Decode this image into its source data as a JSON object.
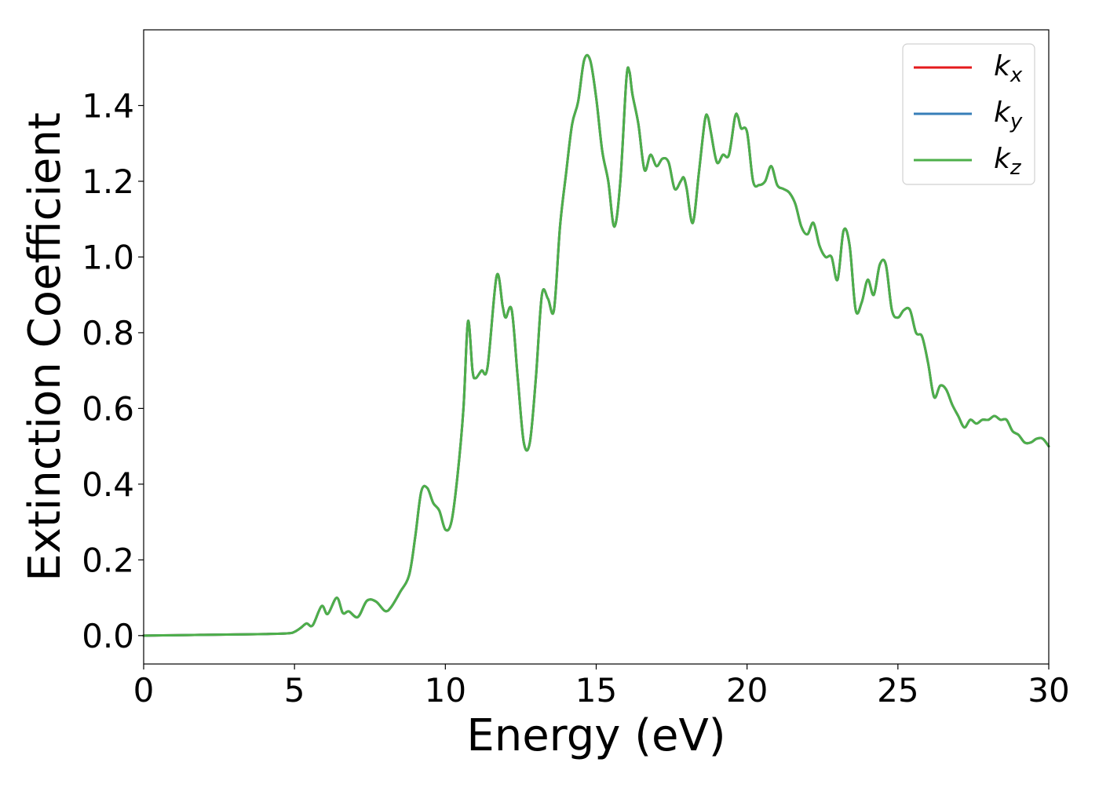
{
  "chart_data": {
    "type": "line",
    "xlabel": "Energy (eV)",
    "ylabel": "Extinction Coefficient",
    "xlim": [
      0,
      30
    ],
    "ylim": [
      -0.075,
      1.6
    ],
    "xticks": [
      0,
      5,
      10,
      15,
      20,
      25,
      30
    ],
    "xtick_labels": [
      "0",
      "5",
      "10",
      "15",
      "20",
      "25",
      "30"
    ],
    "yticks": [
      0.0,
      0.2,
      0.4,
      0.6,
      0.8,
      1.0,
      1.2,
      1.4
    ],
    "ytick_labels": [
      "0.0",
      "0.2",
      "0.4",
      "0.6",
      "0.8",
      "1.0",
      "1.2",
      "1.4"
    ],
    "grid": false,
    "legend_position": "top-right",
    "legend": [
      {
        "base": "k",
        "sub": "x",
        "color": "#e41a1c"
      },
      {
        "base": "k",
        "sub": "y",
        "color": "#377eb8"
      },
      {
        "base": "k",
        "sub": "z",
        "color": "#4daf4a"
      }
    ],
    "x": [
      0,
      1,
      2,
      3,
      4,
      4.8,
      5.0,
      5.2,
      5.4,
      5.6,
      5.9,
      6.1,
      6.4,
      6.6,
      6.8,
      7.1,
      7.4,
      7.7,
      8.0,
      8.2,
      8.5,
      8.8,
      9.0,
      9.2,
      9.4,
      9.6,
      9.8,
      10.0,
      10.2,
      10.4,
      10.6,
      10.75,
      10.9,
      11.0,
      11.2,
      11.4,
      11.7,
      11.9,
      12.0,
      12.2,
      12.4,
      12.6,
      12.8,
      13.0,
      13.2,
      13.4,
      13.6,
      13.8,
      14.0,
      14.2,
      14.4,
      14.6,
      14.8,
      15.0,
      15.2,
      15.4,
      15.6,
      15.8,
      16.0,
      16.1,
      16.2,
      16.4,
      16.6,
      16.8,
      17.0,
      17.2,
      17.4,
      17.6,
      17.8,
      17.9,
      18.0,
      18.2,
      18.4,
      18.6,
      18.7,
      18.8,
      19.0,
      19.2,
      19.4,
      19.6,
      19.7,
      19.8,
      20.0,
      20.2,
      20.4,
      20.6,
      20.8,
      21.0,
      21.2,
      21.4,
      21.6,
      21.8,
      22.0,
      22.2,
      22.4,
      22.6,
      22.8,
      23.0,
      23.2,
      23.4,
      23.6,
      23.8,
      24.0,
      24.2,
      24.4,
      24.6,
      24.8,
      25.0,
      25.2,
      25.4,
      25.6,
      25.8,
      26.0,
      26.2,
      26.4,
      26.6,
      26.8,
      27.0,
      27.2,
      27.4,
      27.6,
      27.8,
      28.0,
      28.2,
      28.4,
      28.6,
      28.8,
      29.0,
      29.2,
      29.4,
      29.6,
      29.8,
      30.0
    ],
    "series": [
      {
        "name": "k_x",
        "color": "#e41a1c",
        "y": [
          0.0,
          0.001,
          0.002,
          0.003,
          0.004,
          0.006,
          0.01,
          0.02,
          0.032,
          0.027,
          0.078,
          0.057,
          0.1,
          0.06,
          0.064,
          0.049,
          0.092,
          0.09,
          0.065,
          0.075,
          0.115,
          0.16,
          0.26,
          0.38,
          0.39,
          0.35,
          0.33,
          0.28,
          0.3,
          0.42,
          0.6,
          0.83,
          0.7,
          0.68,
          0.7,
          0.71,
          0.95,
          0.87,
          0.84,
          0.86,
          0.68,
          0.51,
          0.51,
          0.68,
          0.9,
          0.89,
          0.86,
          1.08,
          1.22,
          1.35,
          1.41,
          1.52,
          1.52,
          1.42,
          1.28,
          1.2,
          1.08,
          1.2,
          1.47,
          1.49,
          1.43,
          1.35,
          1.23,
          1.27,
          1.24,
          1.26,
          1.25,
          1.18,
          1.2,
          1.21,
          1.18,
          1.09,
          1.22,
          1.36,
          1.37,
          1.33,
          1.25,
          1.27,
          1.27,
          1.37,
          1.37,
          1.34,
          1.33,
          1.2,
          1.19,
          1.2,
          1.24,
          1.19,
          1.18,
          1.17,
          1.14,
          1.08,
          1.06,
          1.09,
          1.03,
          1.0,
          1.0,
          0.94,
          1.07,
          1.03,
          0.86,
          0.88,
          0.94,
          0.9,
          0.98,
          0.98,
          0.86,
          0.84,
          0.86,
          0.86,
          0.8,
          0.79,
          0.72,
          0.63,
          0.66,
          0.65,
          0.61,
          0.58,
          0.55,
          0.57,
          0.56,
          0.57,
          0.57,
          0.58,
          0.57,
          0.57,
          0.54,
          0.53,
          0.51,
          0.51,
          0.52,
          0.52,
          0.5
        ]
      },
      {
        "name": "k_y",
        "color": "#377eb8",
        "y": [
          0.0,
          0.001,
          0.002,
          0.003,
          0.004,
          0.006,
          0.01,
          0.02,
          0.032,
          0.027,
          0.078,
          0.057,
          0.1,
          0.06,
          0.064,
          0.049,
          0.092,
          0.09,
          0.065,
          0.075,
          0.115,
          0.16,
          0.26,
          0.38,
          0.39,
          0.35,
          0.33,
          0.28,
          0.3,
          0.42,
          0.6,
          0.83,
          0.7,
          0.68,
          0.7,
          0.71,
          0.95,
          0.87,
          0.84,
          0.86,
          0.68,
          0.51,
          0.51,
          0.68,
          0.9,
          0.89,
          0.86,
          1.08,
          1.22,
          1.35,
          1.41,
          1.52,
          1.52,
          1.42,
          1.28,
          1.2,
          1.08,
          1.2,
          1.47,
          1.49,
          1.43,
          1.35,
          1.23,
          1.27,
          1.24,
          1.26,
          1.25,
          1.18,
          1.2,
          1.21,
          1.18,
          1.09,
          1.22,
          1.36,
          1.37,
          1.33,
          1.25,
          1.27,
          1.27,
          1.37,
          1.37,
          1.34,
          1.33,
          1.2,
          1.19,
          1.2,
          1.24,
          1.19,
          1.18,
          1.17,
          1.14,
          1.08,
          1.06,
          1.09,
          1.03,
          1.0,
          1.0,
          0.94,
          1.07,
          1.03,
          0.86,
          0.88,
          0.94,
          0.9,
          0.98,
          0.98,
          0.86,
          0.84,
          0.86,
          0.86,
          0.8,
          0.79,
          0.72,
          0.63,
          0.66,
          0.65,
          0.61,
          0.58,
          0.55,
          0.57,
          0.56,
          0.57,
          0.57,
          0.58,
          0.57,
          0.57,
          0.54,
          0.53,
          0.51,
          0.51,
          0.52,
          0.52,
          0.5
        ]
      },
      {
        "name": "k_z",
        "color": "#4daf4a",
        "y": [
          0.0,
          0.001,
          0.002,
          0.003,
          0.004,
          0.006,
          0.01,
          0.02,
          0.032,
          0.027,
          0.078,
          0.057,
          0.1,
          0.06,
          0.064,
          0.049,
          0.092,
          0.09,
          0.065,
          0.075,
          0.115,
          0.16,
          0.26,
          0.38,
          0.39,
          0.35,
          0.33,
          0.28,
          0.3,
          0.42,
          0.6,
          0.83,
          0.7,
          0.68,
          0.7,
          0.71,
          0.95,
          0.87,
          0.84,
          0.86,
          0.68,
          0.51,
          0.51,
          0.68,
          0.9,
          0.89,
          0.86,
          1.08,
          1.22,
          1.35,
          1.41,
          1.52,
          1.52,
          1.42,
          1.28,
          1.2,
          1.08,
          1.2,
          1.47,
          1.49,
          1.43,
          1.35,
          1.23,
          1.27,
          1.24,
          1.26,
          1.25,
          1.18,
          1.2,
          1.21,
          1.18,
          1.09,
          1.22,
          1.36,
          1.37,
          1.33,
          1.25,
          1.27,
          1.27,
          1.37,
          1.37,
          1.34,
          1.33,
          1.2,
          1.19,
          1.2,
          1.24,
          1.19,
          1.18,
          1.17,
          1.14,
          1.08,
          1.06,
          1.09,
          1.03,
          1.0,
          1.0,
          0.94,
          1.07,
          1.03,
          0.86,
          0.88,
          0.94,
          0.9,
          0.98,
          0.98,
          0.86,
          0.84,
          0.86,
          0.86,
          0.8,
          0.79,
          0.72,
          0.63,
          0.66,
          0.65,
          0.61,
          0.58,
          0.55,
          0.57,
          0.56,
          0.57,
          0.57,
          0.58,
          0.57,
          0.57,
          0.54,
          0.53,
          0.51,
          0.51,
          0.52,
          0.52,
          0.5
        ]
      }
    ]
  }
}
